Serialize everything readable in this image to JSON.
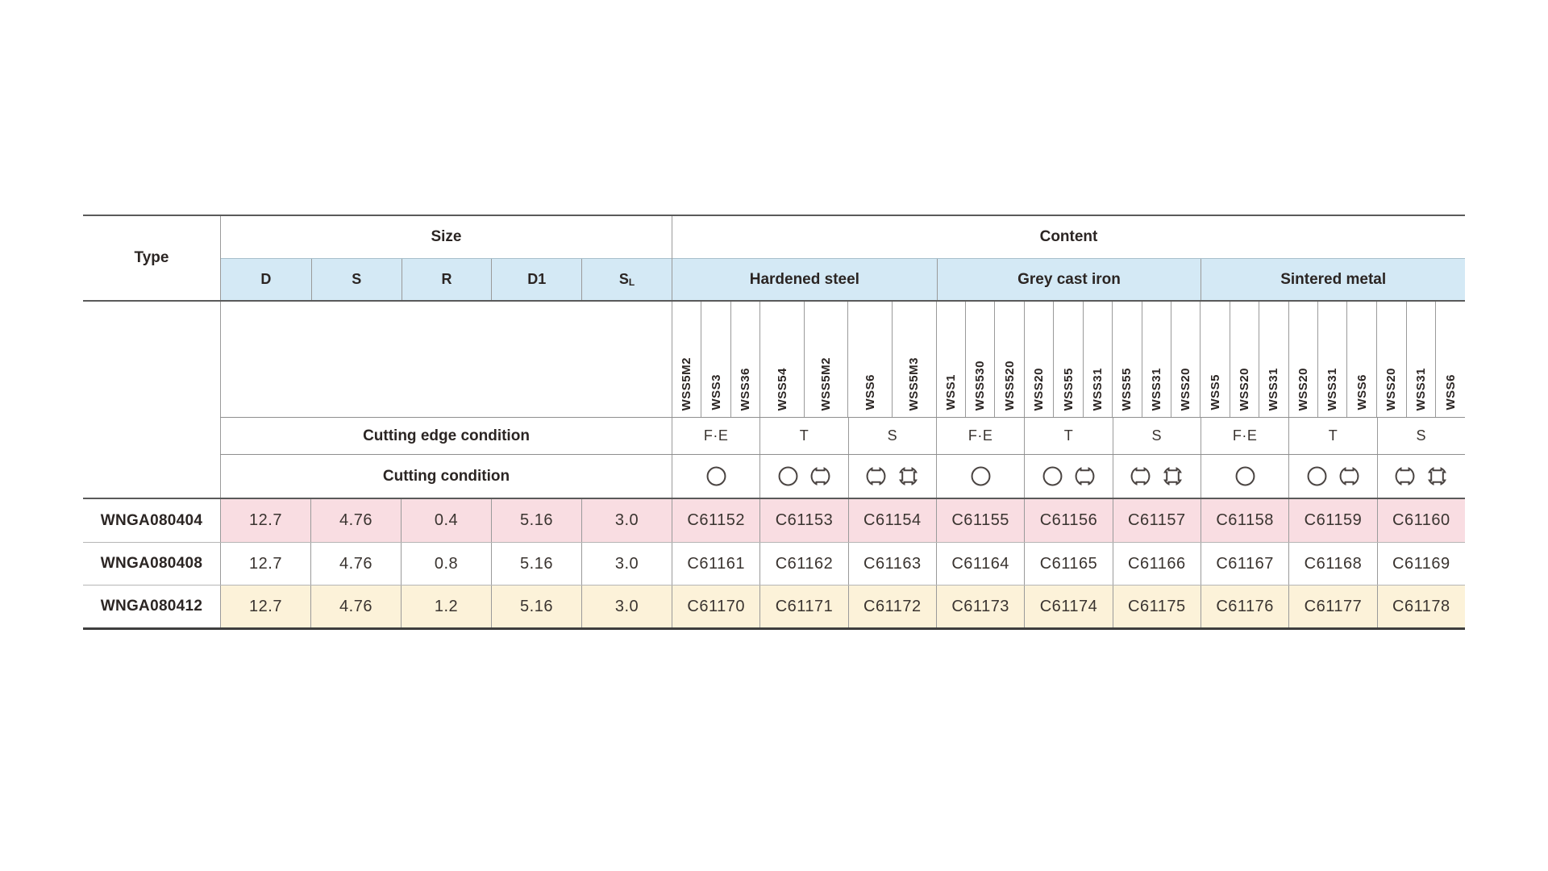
{
  "table": {
    "type_header": "Type",
    "size_header": "Size",
    "content_header": "Content",
    "size_columns": [
      {
        "text": "D"
      },
      {
        "text": "S"
      },
      {
        "text": "R"
      },
      {
        "text": "D1"
      },
      {
        "text": "S",
        "sub": "L"
      }
    ],
    "row_labels": {
      "edge": "Cutting edge condition",
      "cond": "Cutting condition"
    },
    "groups": [
      {
        "name": "Hardened steel",
        "subcols": [
          {
            "edge": "F·E",
            "symbols": [
              "continuous-cut-circle"
            ],
            "wss": [
              "WSS5M2",
              "WSS3",
              "WSS36"
            ]
          },
          {
            "edge": "T",
            "symbols": [
              "continuous-cut-circle",
              "interrupted-cut-2notch"
            ],
            "wss": [
              "WSS54",
              "WSS5M2"
            ]
          },
          {
            "edge": "S",
            "symbols": [
              "interrupted-cut-2notch",
              "interrupted-cut-4notch"
            ],
            "wss": [
              "WSS6",
              "WSS5M3"
            ]
          }
        ]
      },
      {
        "name": "Grey cast iron",
        "subcols": [
          {
            "edge": "F·E",
            "symbols": [
              "continuous-cut-circle"
            ],
            "wss": [
              "WSS1",
              "WSS530",
              "WSS520"
            ]
          },
          {
            "edge": "T",
            "symbols": [
              "continuous-cut-circle",
              "interrupted-cut-2notch"
            ],
            "wss": [
              "WSS20",
              "WSS55",
              "WSS31"
            ]
          },
          {
            "edge": "S",
            "symbols": [
              "interrupted-cut-2notch",
              "interrupted-cut-4notch"
            ],
            "wss": [
              "WSS55",
              "WSS31",
              "WSS20"
            ]
          }
        ]
      },
      {
        "name": "Sintered metal",
        "subcols": [
          {
            "edge": "F·E",
            "symbols": [
              "continuous-cut-circle"
            ],
            "wss": [
              "WSS5",
              "WSS20",
              "WSS31"
            ]
          },
          {
            "edge": "T",
            "symbols": [
              "continuous-cut-circle",
              "interrupted-cut-2notch"
            ],
            "wss": [
              "WSS20",
              "WSS31",
              "WSS6"
            ]
          },
          {
            "edge": "S",
            "symbols": [
              "interrupted-cut-2notch",
              "interrupted-cut-4notch"
            ],
            "wss": [
              "WSS20",
              "WSS31",
              "WSS6"
            ]
          }
        ]
      }
    ],
    "rows": [
      {
        "type": "WNGA080404",
        "size": [
          "12.7",
          "4.76",
          "0.4",
          "5.16",
          "3.0"
        ],
        "codes": [
          "C61152",
          "C61153",
          "C61154",
          "C61155",
          "C61156",
          "C61157",
          "C61158",
          "C61159",
          "C61160"
        ],
        "bg": "#f9dde2"
      },
      {
        "type": "WNGA080408",
        "size": [
          "12.7",
          "4.76",
          "0.8",
          "5.16",
          "3.0"
        ],
        "codes": [
          "C61161",
          "C61162",
          "C61163",
          "C61164",
          "C61165",
          "C61166",
          "C61167",
          "C61168",
          "C61169"
        ],
        "bg": "#ffffff"
      },
      {
        "type": "WNGA080412",
        "size": [
          "12.7",
          "4.76",
          "1.2",
          "5.16",
          "3.0"
        ],
        "codes": [
          "C61170",
          "C61171",
          "C61172",
          "C61173",
          "C61174",
          "C61175",
          "C61176",
          "C61177",
          "C61178"
        ],
        "bg": "#fcf2d9"
      }
    ],
    "colors": {
      "header_blue": "#d4e9f5",
      "row_pink": "#f9dde2",
      "row_white": "#ffffff",
      "row_cream": "#fcf2d9",
      "text": "#2b2523",
      "value_text": "#3a3430",
      "border_thin": "#9a9a9a",
      "border_thick": "#5a5a5a",
      "border_bottom": "#3e3e3e",
      "symbol_stroke": "#4a4442"
    }
  }
}
